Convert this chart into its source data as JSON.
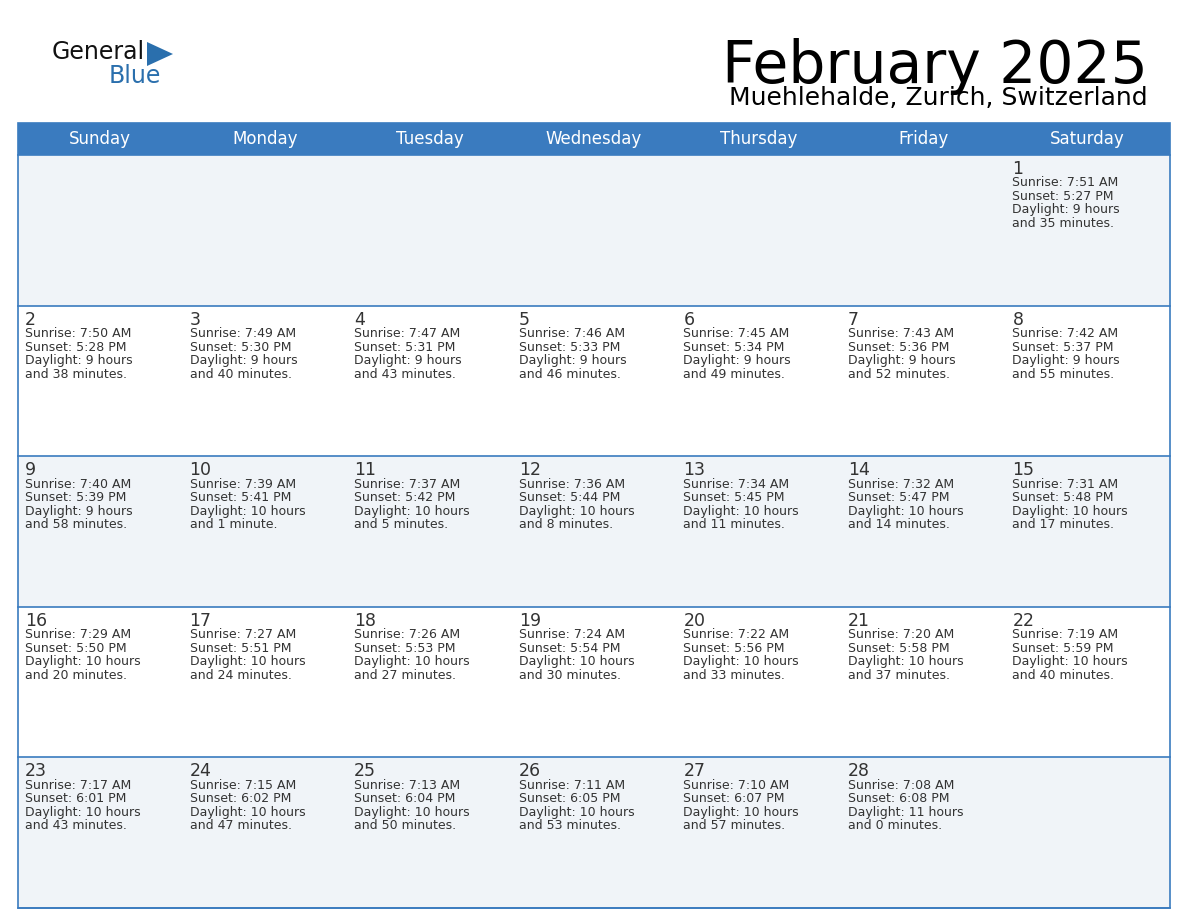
{
  "title": "February 2025",
  "subtitle": "Muehlehalde, Zurich, Switzerland",
  "days_of_week": [
    "Sunday",
    "Monday",
    "Tuesday",
    "Wednesday",
    "Thursday",
    "Friday",
    "Saturday"
  ],
  "header_bg": "#3a7bbf",
  "header_text": "#ffffff",
  "row_bg_odd": "#f0f4f8",
  "row_bg_even": "#ffffff",
  "cell_border_color": "#3a7bbf",
  "day_number_color": "#333333",
  "info_text_color": "#333333",
  "logo_general_color": "#111111",
  "logo_blue_color": "#2a6fad",
  "calendar_data": [
    {
      "day": 1,
      "col": 6,
      "row": 0,
      "sunrise": "7:51 AM",
      "sunset": "5:27 PM",
      "daylight": "9 hours",
      "daylight2": "and 35 minutes."
    },
    {
      "day": 2,
      "col": 0,
      "row": 1,
      "sunrise": "7:50 AM",
      "sunset": "5:28 PM",
      "daylight": "9 hours",
      "daylight2": "and 38 minutes."
    },
    {
      "day": 3,
      "col": 1,
      "row": 1,
      "sunrise": "7:49 AM",
      "sunset": "5:30 PM",
      "daylight": "9 hours",
      "daylight2": "and 40 minutes."
    },
    {
      "day": 4,
      "col": 2,
      "row": 1,
      "sunrise": "7:47 AM",
      "sunset": "5:31 PM",
      "daylight": "9 hours",
      "daylight2": "and 43 minutes."
    },
    {
      "day": 5,
      "col": 3,
      "row": 1,
      "sunrise": "7:46 AM",
      "sunset": "5:33 PM",
      "daylight": "9 hours",
      "daylight2": "and 46 minutes."
    },
    {
      "day": 6,
      "col": 4,
      "row": 1,
      "sunrise": "7:45 AM",
      "sunset": "5:34 PM",
      "daylight": "9 hours",
      "daylight2": "and 49 minutes."
    },
    {
      "day": 7,
      "col": 5,
      "row": 1,
      "sunrise": "7:43 AM",
      "sunset": "5:36 PM",
      "daylight": "9 hours",
      "daylight2": "and 52 minutes."
    },
    {
      "day": 8,
      "col": 6,
      "row": 1,
      "sunrise": "7:42 AM",
      "sunset": "5:37 PM",
      "daylight": "9 hours",
      "daylight2": "and 55 minutes."
    },
    {
      "day": 9,
      "col": 0,
      "row": 2,
      "sunrise": "7:40 AM",
      "sunset": "5:39 PM",
      "daylight": "9 hours",
      "daylight2": "and 58 minutes."
    },
    {
      "day": 10,
      "col": 1,
      "row": 2,
      "sunrise": "7:39 AM",
      "sunset": "5:41 PM",
      "daylight": "10 hours",
      "daylight2": "and 1 minute."
    },
    {
      "day": 11,
      "col": 2,
      "row": 2,
      "sunrise": "7:37 AM",
      "sunset": "5:42 PM",
      "daylight": "10 hours",
      "daylight2": "and 5 minutes."
    },
    {
      "day": 12,
      "col": 3,
      "row": 2,
      "sunrise": "7:36 AM",
      "sunset": "5:44 PM",
      "daylight": "10 hours",
      "daylight2": "and 8 minutes."
    },
    {
      "day": 13,
      "col": 4,
      "row": 2,
      "sunrise": "7:34 AM",
      "sunset": "5:45 PM",
      "daylight": "10 hours",
      "daylight2": "and 11 minutes."
    },
    {
      "day": 14,
      "col": 5,
      "row": 2,
      "sunrise": "7:32 AM",
      "sunset": "5:47 PM",
      "daylight": "10 hours",
      "daylight2": "and 14 minutes."
    },
    {
      "day": 15,
      "col": 6,
      "row": 2,
      "sunrise": "7:31 AM",
      "sunset": "5:48 PM",
      "daylight": "10 hours",
      "daylight2": "and 17 minutes."
    },
    {
      "day": 16,
      "col": 0,
      "row": 3,
      "sunrise": "7:29 AM",
      "sunset": "5:50 PM",
      "daylight": "10 hours",
      "daylight2": "and 20 minutes."
    },
    {
      "day": 17,
      "col": 1,
      "row": 3,
      "sunrise": "7:27 AM",
      "sunset": "5:51 PM",
      "daylight": "10 hours",
      "daylight2": "and 24 minutes."
    },
    {
      "day": 18,
      "col": 2,
      "row": 3,
      "sunrise": "7:26 AM",
      "sunset": "5:53 PM",
      "daylight": "10 hours",
      "daylight2": "and 27 minutes."
    },
    {
      "day": 19,
      "col": 3,
      "row": 3,
      "sunrise": "7:24 AM",
      "sunset": "5:54 PM",
      "daylight": "10 hours",
      "daylight2": "and 30 minutes."
    },
    {
      "day": 20,
      "col": 4,
      "row": 3,
      "sunrise": "7:22 AM",
      "sunset": "5:56 PM",
      "daylight": "10 hours",
      "daylight2": "and 33 minutes."
    },
    {
      "day": 21,
      "col": 5,
      "row": 3,
      "sunrise": "7:20 AM",
      "sunset": "5:58 PM",
      "daylight": "10 hours",
      "daylight2": "and 37 minutes."
    },
    {
      "day": 22,
      "col": 6,
      "row": 3,
      "sunrise": "7:19 AM",
      "sunset": "5:59 PM",
      "daylight": "10 hours",
      "daylight2": "and 40 minutes."
    },
    {
      "day": 23,
      "col": 0,
      "row": 4,
      "sunrise": "7:17 AM",
      "sunset": "6:01 PM",
      "daylight": "10 hours",
      "daylight2": "and 43 minutes."
    },
    {
      "day": 24,
      "col": 1,
      "row": 4,
      "sunrise": "7:15 AM",
      "sunset": "6:02 PM",
      "daylight": "10 hours",
      "daylight2": "and 47 minutes."
    },
    {
      "day": 25,
      "col": 2,
      "row": 4,
      "sunrise": "7:13 AM",
      "sunset": "6:04 PM",
      "daylight": "10 hours",
      "daylight2": "and 50 minutes."
    },
    {
      "day": 26,
      "col": 3,
      "row": 4,
      "sunrise": "7:11 AM",
      "sunset": "6:05 PM",
      "daylight": "10 hours",
      "daylight2": "and 53 minutes."
    },
    {
      "day": 27,
      "col": 4,
      "row": 4,
      "sunrise": "7:10 AM",
      "sunset": "6:07 PM",
      "daylight": "10 hours",
      "daylight2": "and 57 minutes."
    },
    {
      "day": 28,
      "col": 5,
      "row": 4,
      "sunrise": "7:08 AM",
      "sunset": "6:08 PM",
      "daylight": "11 hours",
      "daylight2": "and 0 minutes."
    }
  ]
}
